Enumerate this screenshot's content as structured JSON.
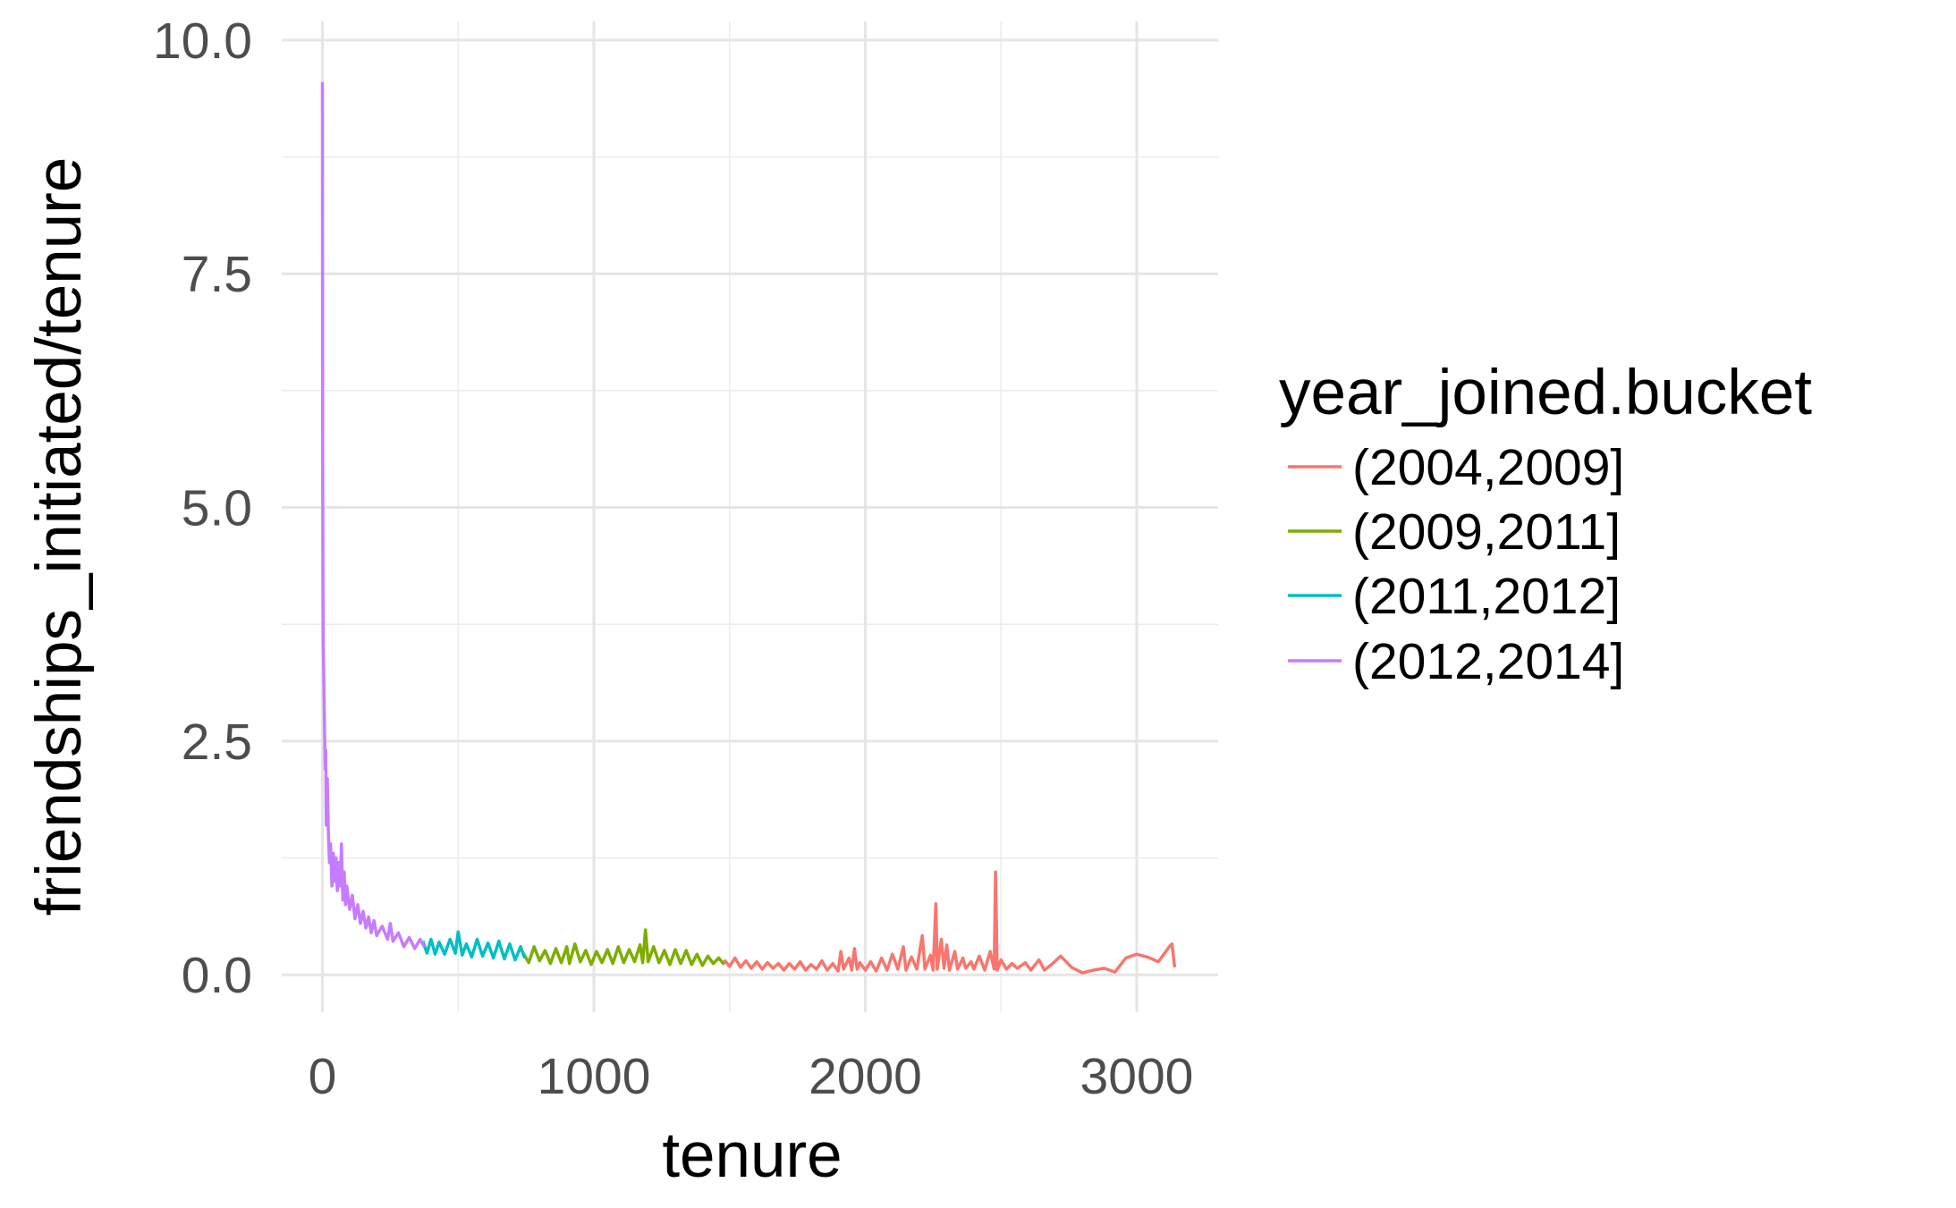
{
  "chart_data": {
    "type": "line",
    "title": "",
    "xlabel": "tenure",
    "ylabel": "friendships_initiated/tenure",
    "xlim": [
      -150,
      3300
    ],
    "ylim": [
      -0.4,
      10.2
    ],
    "x_ticks": [
      0,
      1000,
      2000,
      3000
    ],
    "x_tick_labels": [
      "0",
      "1000",
      "2000",
      "3000"
    ],
    "y_ticks": [
      0,
      2.5,
      5,
      7.5,
      10
    ],
    "y_tick_labels": [
      "0.0",
      "2.5",
      "5.0",
      "7.5",
      "10.0"
    ],
    "grid": true,
    "legend": {
      "title": "year_joined.bucket",
      "position": "right"
    },
    "series": [
      {
        "name": "(2004,2009]",
        "color": "#F8766D",
        "points": [
          [
            1480,
            0.16
          ],
          [
            1500,
            0.09
          ],
          [
            1520,
            0.18
          ],
          [
            1540,
            0.08
          ],
          [
            1560,
            0.15
          ],
          [
            1580,
            0.07
          ],
          [
            1600,
            0.14
          ],
          [
            1620,
            0.06
          ],
          [
            1640,
            0.13
          ],
          [
            1660,
            0.07
          ],
          [
            1680,
            0.12
          ],
          [
            1700,
            0.05
          ],
          [
            1720,
            0.12
          ],
          [
            1740,
            0.06
          ],
          [
            1760,
            0.14
          ],
          [
            1780,
            0.05
          ],
          [
            1800,
            0.11
          ],
          [
            1820,
            0.06
          ],
          [
            1840,
            0.15
          ],
          [
            1860,
            0.05
          ],
          [
            1880,
            0.12
          ],
          [
            1900,
            0.04
          ],
          [
            1910,
            0.25
          ],
          [
            1920,
            0.06
          ],
          [
            1940,
            0.18
          ],
          [
            1950,
            0.05
          ],
          [
            1960,
            0.28
          ],
          [
            1970,
            0.06
          ],
          [
            1980,
            0.13
          ],
          [
            2000,
            0.05
          ],
          [
            2020,
            0.14
          ],
          [
            2040,
            0.04
          ],
          [
            2060,
            0.18
          ],
          [
            2080,
            0.05
          ],
          [
            2100,
            0.22
          ],
          [
            2120,
            0.06
          ],
          [
            2140,
            0.3
          ],
          [
            2150,
            0.05
          ],
          [
            2170,
            0.19
          ],
          [
            2190,
            0.06
          ],
          [
            2210,
            0.42
          ],
          [
            2220,
            0.06
          ],
          [
            2240,
            0.21
          ],
          [
            2250,
            0.05
          ],
          [
            2260,
            0.76
          ],
          [
            2265,
            0.06
          ],
          [
            2280,
            0.38
          ],
          [
            2290,
            0.07
          ],
          [
            2300,
            0.32
          ],
          [
            2310,
            0.05
          ],
          [
            2330,
            0.25
          ],
          [
            2340,
            0.06
          ],
          [
            2360,
            0.18
          ],
          [
            2370,
            0.07
          ],
          [
            2390,
            0.14
          ],
          [
            2400,
            0.06
          ],
          [
            2420,
            0.2
          ],
          [
            2440,
            0.05
          ],
          [
            2460,
            0.25
          ],
          [
            2475,
            0.06
          ],
          [
            2480,
            1.1
          ],
          [
            2486,
            0.05
          ],
          [
            2500,
            0.16
          ],
          [
            2520,
            0.06
          ],
          [
            2540,
            0.12
          ],
          [
            2560,
            0.07
          ],
          [
            2590,
            0.13
          ],
          [
            2610,
            0.05
          ],
          [
            2640,
            0.16
          ],
          [
            2660,
            0.05
          ],
          [
            2690,
            0.12
          ],
          [
            2720,
            0.2
          ],
          [
            2760,
            0.08
          ],
          [
            2800,
            0.02
          ],
          [
            2840,
            0.05
          ],
          [
            2880,
            0.07
          ],
          [
            2920,
            0.03
          ],
          [
            2960,
            0.18
          ],
          [
            3000,
            0.22
          ],
          [
            3040,
            0.19
          ],
          [
            3080,
            0.14
          ],
          [
            3120,
            0.3
          ],
          [
            3130,
            0.33
          ],
          [
            3140,
            0.08
          ]
        ]
      },
      {
        "name": "(2009,2011]",
        "color": "#7CAE00",
        "points": [
          [
            740,
            0.23
          ],
          [
            760,
            0.13
          ],
          [
            780,
            0.3
          ],
          [
            800,
            0.15
          ],
          [
            820,
            0.26
          ],
          [
            840,
            0.12
          ],
          [
            860,
            0.28
          ],
          [
            880,
            0.13
          ],
          [
            900,
            0.3
          ],
          [
            910,
            0.12
          ],
          [
            930,
            0.33
          ],
          [
            950,
            0.14
          ],
          [
            970,
            0.26
          ],
          [
            990,
            0.11
          ],
          [
            1010,
            0.25
          ],
          [
            1030,
            0.13
          ],
          [
            1050,
            0.27
          ],
          [
            1070,
            0.12
          ],
          [
            1090,
            0.3
          ],
          [
            1110,
            0.13
          ],
          [
            1130,
            0.27
          ],
          [
            1150,
            0.14
          ],
          [
            1170,
            0.32
          ],
          [
            1180,
            0.13
          ],
          [
            1190,
            0.48
          ],
          [
            1200,
            0.14
          ],
          [
            1220,
            0.3
          ],
          [
            1240,
            0.13
          ],
          [
            1260,
            0.26
          ],
          [
            1280,
            0.11
          ],
          [
            1300,
            0.27
          ],
          [
            1320,
            0.12
          ],
          [
            1340,
            0.26
          ],
          [
            1360,
            0.11
          ],
          [
            1380,
            0.22
          ],
          [
            1400,
            0.1
          ],
          [
            1420,
            0.2
          ],
          [
            1440,
            0.12
          ],
          [
            1460,
            0.18
          ],
          [
            1480,
            0.11
          ]
        ]
      },
      {
        "name": "(2011,2012]",
        "color": "#00BFC4",
        "points": [
          [
            370,
            0.36
          ],
          [
            385,
            0.23
          ],
          [
            400,
            0.38
          ],
          [
            415,
            0.22
          ],
          [
            430,
            0.35
          ],
          [
            450,
            0.22
          ],
          [
            470,
            0.38
          ],
          [
            490,
            0.23
          ],
          [
            500,
            0.46
          ],
          [
            515,
            0.21
          ],
          [
            530,
            0.33
          ],
          [
            550,
            0.19
          ],
          [
            570,
            0.38
          ],
          [
            590,
            0.2
          ],
          [
            610,
            0.34
          ],
          [
            630,
            0.18
          ],
          [
            650,
            0.36
          ],
          [
            670,
            0.17
          ],
          [
            690,
            0.33
          ],
          [
            710,
            0.16
          ],
          [
            730,
            0.3
          ],
          [
            745,
            0.18
          ]
        ]
      },
      {
        "name": "(2012,2014]",
        "color": "#C77CFF",
        "points": [
          [
            0,
            9.55
          ],
          [
            1,
            5.5
          ],
          [
            2,
            4.3
          ],
          [
            3,
            3.6
          ],
          [
            5,
            3.2
          ],
          [
            8,
            2.6
          ],
          [
            10,
            2.2
          ],
          [
            12,
            2.4
          ],
          [
            14,
            1.6
          ],
          [
            18,
            2.1
          ],
          [
            22,
            1.5
          ],
          [
            26,
            1.2
          ],
          [
            30,
            1.4
          ],
          [
            35,
            0.95
          ],
          [
            40,
            1.3
          ],
          [
            45,
            1.0
          ],
          [
            50,
            1.25
          ],
          [
            55,
            0.9
          ],
          [
            60,
            1.2
          ],
          [
            65,
            0.95
          ],
          [
            70,
            1.4
          ],
          [
            75,
            0.8
          ],
          [
            80,
            1.1
          ],
          [
            85,
            0.75
          ],
          [
            90,
            0.95
          ],
          [
            100,
            0.7
          ],
          [
            110,
            0.85
          ],
          [
            120,
            0.6
          ],
          [
            130,
            0.75
          ],
          [
            140,
            0.55
          ],
          [
            150,
            0.68
          ],
          [
            160,
            0.5
          ],
          [
            170,
            0.62
          ],
          [
            180,
            0.45
          ],
          [
            190,
            0.58
          ],
          [
            200,
            0.42
          ],
          [
            220,
            0.52
          ],
          [
            240,
            0.38
          ],
          [
            250,
            0.55
          ],
          [
            260,
            0.36
          ],
          [
            280,
            0.45
          ],
          [
            300,
            0.3
          ],
          [
            320,
            0.4
          ],
          [
            340,
            0.28
          ],
          [
            360,
            0.38
          ],
          [
            375,
            0.3
          ]
        ]
      }
    ]
  }
}
